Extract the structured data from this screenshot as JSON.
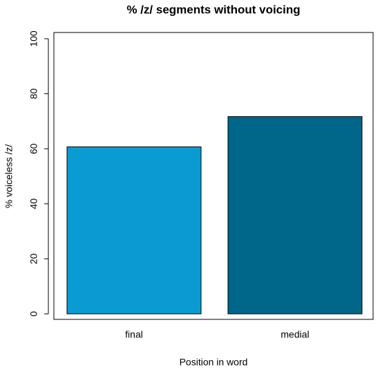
{
  "chart_data": {
    "type": "bar",
    "title": "% /z/ segments without voicing",
    "x_label": "Position in word",
    "y_label": "% voiceless /z/",
    "categories": [
      "final",
      "medial"
    ],
    "values": [
      60.7,
      71.7
    ],
    "colors": [
      "#0a9bd2",
      "#00668a"
    ],
    "ylim": [
      0,
      100
    ],
    "yticks": [
      0,
      20,
      40,
      60,
      80,
      100
    ]
  }
}
